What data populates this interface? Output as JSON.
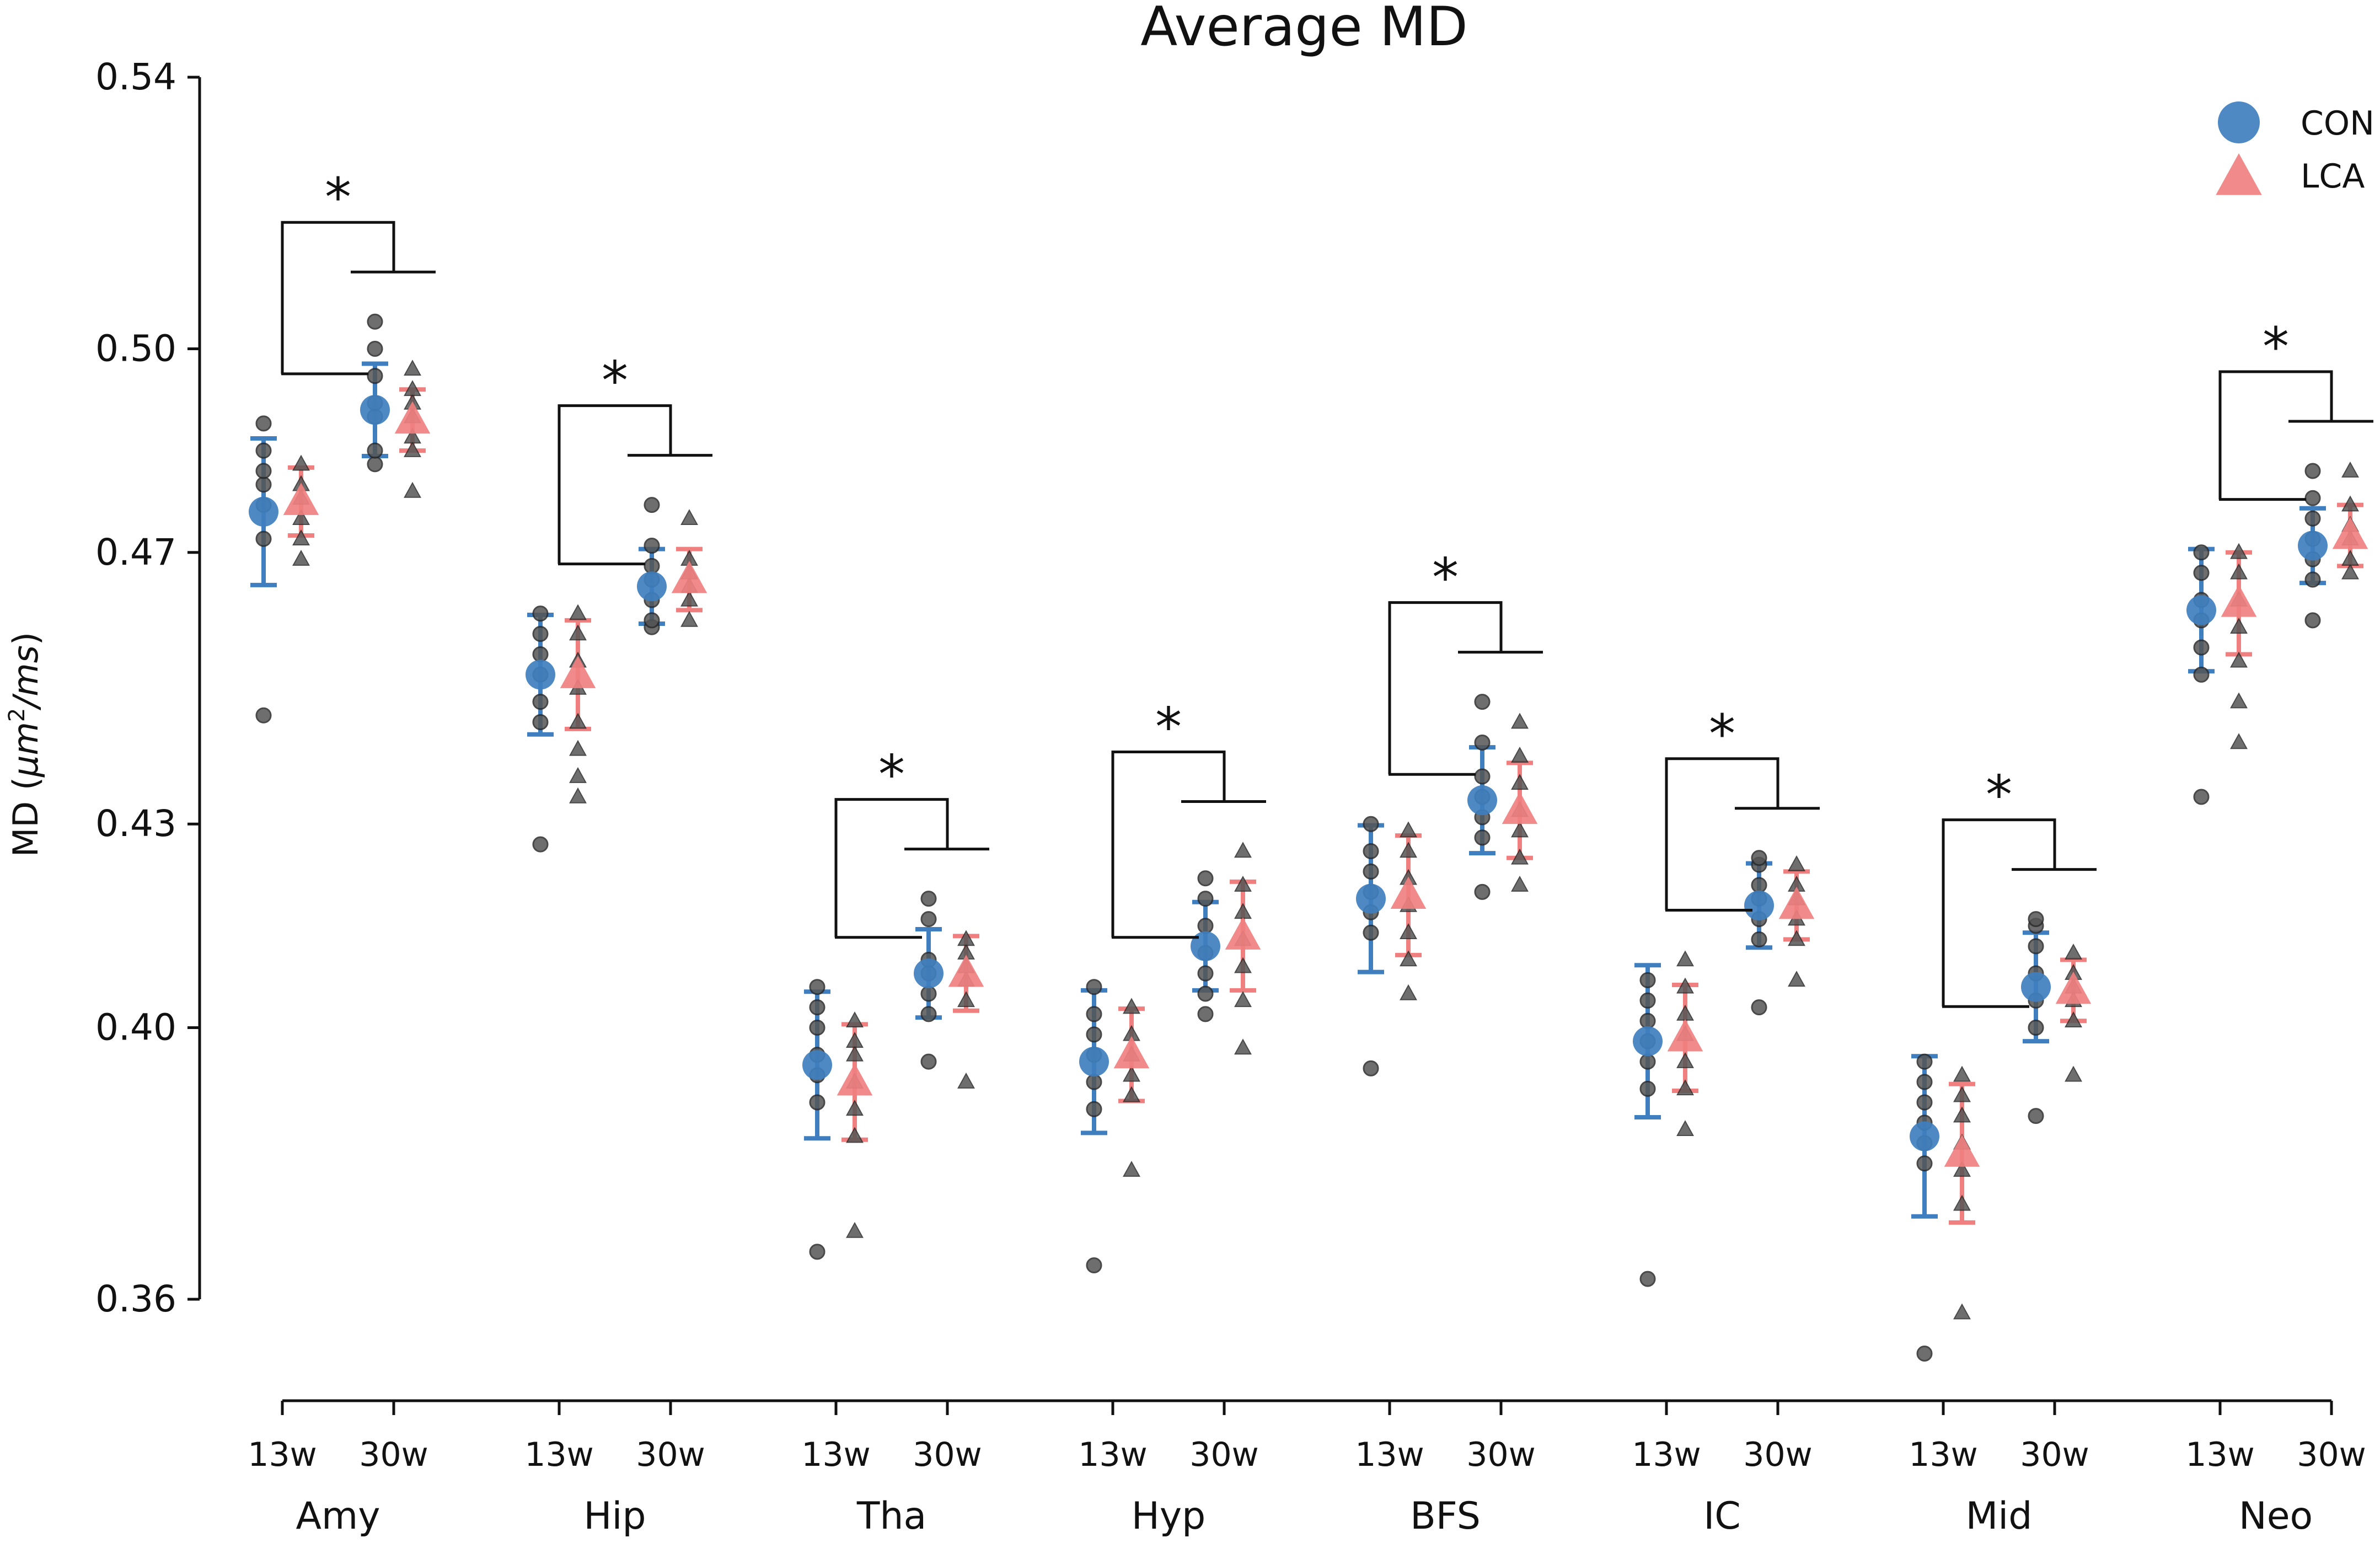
{
  "chart_data": {
    "type": "scatter",
    "title": "Average MD",
    "ylabel": "MD (μm²/ms)",
    "ylabel_parts": {
      "prefix": "MD (",
      "unit1": "μm",
      "sup": "2",
      "unit2": "/ms",
      "suffix": ")"
    },
    "xlabel": "",
    "ylim": [
      0.343,
      0.54
    ],
    "yticks": [
      0.36,
      0.4,
      0.43,
      0.47,
      0.5,
      0.54
    ],
    "ytick_labels": [
      "0.36",
      "0.40",
      "0.43",
      "0.47",
      "0.50",
      "0.54"
    ],
    "timepoints": [
      "13w",
      "30w"
    ],
    "regions": [
      "Amy",
      "Hip",
      "Tha",
      "Hyp",
      "BFS",
      "IC",
      "Mid",
      "Neo"
    ],
    "legend": [
      {
        "name": "CON",
        "marker": "circle",
        "color": "#3f7fbf"
      },
      {
        "name": "LCA",
        "marker": "triangle",
        "color": "#f08080"
      }
    ],
    "groups": [
      {
        "region": "Amy",
        "sig": "*",
        "CON": {
          "13w": {
            "mean": 0.476,
            "err": 0.0108,
            "points": [
              0.446,
              0.472,
              0.477,
              0.48,
              0.482,
              0.485,
              0.489
            ]
          },
          "30w": {
            "mean": 0.491,
            "err": 0.0068,
            "points": [
              0.483,
              0.485,
              0.49,
              0.492,
              0.496,
              0.5,
              0.504
            ]
          }
        },
        "LCA": {
          "13w": {
            "mean": 0.4775,
            "err": 0.005,
            "points": [
              0.469,
              0.472,
              0.475,
              0.478,
              0.48,
              0.483
            ]
          },
          "30w": {
            "mean": 0.4895,
            "err": 0.0045,
            "points": [
              0.479,
              0.485,
              0.487,
              0.49,
              0.492,
              0.494,
              0.497
            ]
          }
        }
      },
      {
        "region": "Hip",
        "sig": "*",
        "CON": {
          "13w": {
            "mean": 0.452,
            "err": 0.0088,
            "points": [
              0.427,
              0.445,
              0.448,
              0.452,
              0.455,
              0.458,
              0.461
            ]
          },
          "30w": {
            "mean": 0.465,
            "err": 0.0055,
            "points": [
              0.459,
              0.46,
              0.463,
              0.466,
              0.468,
              0.471,
              0.477
            ]
          }
        },
        "LCA": {
          "13w": {
            "mean": 0.452,
            "err": 0.008,
            "points": [
              0.434,
              0.437,
              0.441,
              0.445,
              0.45,
              0.454,
              0.458,
              0.461
            ]
          },
          "30w": {
            "mean": 0.466,
            "err": 0.0045,
            "points": [
              0.46,
              0.463,
              0.465,
              0.467,
              0.469,
              0.475
            ]
          }
        }
      },
      {
        "region": "Tha",
        "sig": "*",
        "CON": {
          "13w": {
            "mean": 0.3945,
            "err": 0.0108,
            "points": [
              0.367,
              0.389,
              0.393,
              0.396,
              0.4,
              0.403,
              0.406
            ]
          },
          "30w": {
            "mean": 0.408,
            "err": 0.0065,
            "points": [
              0.395,
              0.402,
              0.405,
              0.408,
              0.41,
              0.416,
              0.419
            ]
          }
        },
        "LCA": {
          "13w": {
            "mean": 0.392,
            "err": 0.0085,
            "points": [
              0.37,
              0.384,
              0.388,
              0.392,
              0.396,
              0.398,
              0.401
            ]
          },
          "30w": {
            "mean": 0.408,
            "err": 0.0055,
            "points": [
              0.392,
              0.404,
              0.407,
              0.409,
              0.411,
              0.413
            ]
          }
        }
      },
      {
        "region": "Hyp",
        "sig": "*",
        "CON": {
          "13w": {
            "mean": 0.395,
            "err": 0.0105,
            "points": [
              0.365,
              0.388,
              0.392,
              0.396,
              0.399,
              0.402,
              0.406
            ]
          },
          "30w": {
            "mean": 0.412,
            "err": 0.0065,
            "points": [
              0.402,
              0.405,
              0.408,
              0.411,
              0.415,
              0.419,
              0.422
            ]
          }
        },
        "LCA": {
          "13w": {
            "mean": 0.396,
            "err": 0.0068,
            "points": [
              0.379,
              0.39,
              0.393,
              0.396,
              0.399,
              0.403
            ]
          },
          "30w": {
            "mean": 0.4135,
            "err": 0.008,
            "points": [
              0.397,
              0.404,
              0.409,
              0.413,
              0.417,
              0.421,
              0.426
            ]
          }
        }
      },
      {
        "region": "BFS",
        "sig": "*",
        "CON": {
          "13w": {
            "mean": 0.419,
            "err": 0.0108,
            "points": [
              0.394,
              0.414,
              0.417,
              0.42,
              0.423,
              0.426,
              0.43
            ]
          },
          "30w": {
            "mean": 0.4335,
            "err": 0.0078,
            "points": [
              0.42,
              0.428,
              0.431,
              0.434,
              0.437,
              0.442,
              0.448
            ]
          }
        },
        "LCA": {
          "13w": {
            "mean": 0.4195,
            "err": 0.0088,
            "points": [
              0.405,
              0.41,
              0.414,
              0.418,
              0.422,
              0.426,
              0.429
            ]
          },
          "30w": {
            "mean": 0.432,
            "err": 0.007,
            "points": [
              0.421,
              0.425,
              0.429,
              0.432,
              0.436,
              0.44,
              0.445
            ]
          }
        }
      },
      {
        "region": "IC",
        "sig": "*",
        "CON": {
          "13w": {
            "mean": 0.398,
            "err": 0.0112,
            "points": [
              0.363,
              0.391,
              0.395,
              0.398,
              0.401,
              0.404,
              0.407
            ]
          },
          "30w": {
            "mean": 0.418,
            "err": 0.0062,
            "points": [
              0.403,
              0.413,
              0.416,
              0.419,
              0.421,
              0.424,
              0.425
            ]
          }
        },
        "LCA": {
          "13w": {
            "mean": 0.3985,
            "err": 0.0078,
            "points": [
              0.385,
              0.391,
              0.395,
              0.399,
              0.402,
              0.406,
              0.41
            ]
          },
          "30w": {
            "mean": 0.418,
            "err": 0.005,
            "points": [
              0.407,
              0.413,
              0.416,
              0.419,
              0.421,
              0.424
            ]
          }
        }
      },
      {
        "region": "Mid",
        "sig": "*",
        "CON": {
          "13w": {
            "mean": 0.384,
            "err": 0.0118,
            "points": [
              0.352,
              0.38,
              0.383,
              0.386,
              0.389,
              0.392,
              0.395
            ]
          },
          "30w": {
            "mean": 0.406,
            "err": 0.008,
            "points": [
              0.387,
              0.4,
              0.404,
              0.408,
              0.412,
              0.415,
              0.416
            ]
          }
        },
        "LCA": {
          "13w": {
            "mean": 0.3815,
            "err": 0.0102,
            "points": [
              0.358,
              0.374,
              0.379,
              0.383,
              0.387,
              0.39,
              0.393
            ]
          },
          "30w": {
            "mean": 0.4055,
            "err": 0.0045,
            "points": [
              0.393,
              0.401,
              0.404,
              0.406,
              0.408,
              0.411
            ]
          }
        }
      },
      {
        "region": "Neo",
        "sig": "*",
        "CON": {
          "13w": {
            "mean": 0.4615,
            "err": 0.009,
            "points": [
              0.434,
              0.452,
              0.456,
              0.46,
              0.463,
              0.467,
              0.47
            ]
          },
          "30w": {
            "mean": 0.471,
            "err": 0.0055,
            "points": [
              0.46,
              0.466,
              0.469,
              0.472,
              0.475,
              0.478,
              0.482
            ]
          }
        },
        "LCA": {
          "13w": {
            "mean": 0.4625,
            "err": 0.0075,
            "points": [
              0.442,
              0.448,
              0.454,
              0.459,
              0.463,
              0.467,
              0.47
            ]
          },
          "30w": {
            "mean": 0.4725,
            "err": 0.0045,
            "points": [
              0.467,
              0.469,
              0.472,
              0.474,
              0.477,
              0.482
            ]
          }
        }
      }
    ]
  }
}
